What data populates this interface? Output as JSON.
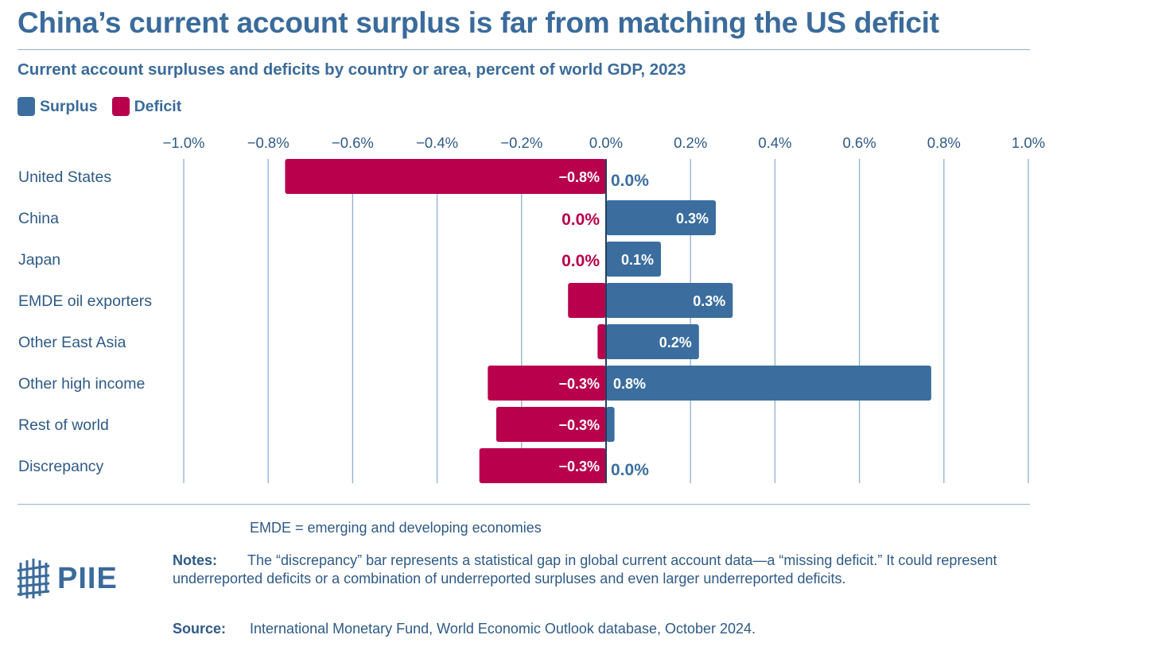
{
  "title": "China’s current account surplus is far from matching the US deficit",
  "subtitle": "Current account surpluses and deficits by country or area, percent of world GDP, 2023",
  "legend": {
    "surplus_label": "Surplus",
    "deficit_label": "Deficit"
  },
  "colors": {
    "surplus": "#3b6e9e",
    "deficit": "#b8004c",
    "grid": "#8fb0cf",
    "text": "#2e5a86"
  },
  "chart_data": {
    "type": "bar",
    "orientation": "horizontal",
    "categories": [
      "United States",
      "China",
      "Japan",
      "EMDE oil exporters",
      "Other East Asia",
      "Other high income",
      "Rest of world",
      "Discrepancy"
    ],
    "series": [
      {
        "name": "Surplus",
        "values": [
          0.0,
          0.26,
          0.13,
          0.3,
          0.22,
          0.77,
          0.02,
          0.0
        ]
      },
      {
        "name": "Deficit",
        "values": [
          -0.76,
          0.0,
          0.0,
          -0.09,
          -0.02,
          -0.28,
          -0.26,
          -0.3
        ]
      }
    ],
    "data_labels": {
      "surplus": [
        "0.0%",
        "0.3%",
        "0.1%",
        "0.3%",
        "0.2%",
        "0.8%",
        "",
        "0.0%"
      ],
      "deficit": [
        "−0.8%",
        "0.0%",
        "0.0%",
        "",
        "",
        "−0.3%",
        "−0.3%",
        "−0.3%"
      ]
    },
    "x_ticks": [
      "−1.0%",
      "−0.8%",
      "−0.6%",
      "−0.4%",
      "−0.2%",
      "0.0%",
      "0.2%",
      "0.4%",
      "0.6%",
      "0.8%",
      "1.0%"
    ],
    "xlim": [
      -1.0,
      1.0
    ],
    "grid": true,
    "legend_position": "top-left"
  },
  "footer": {
    "abbrev": "EMDE = emerging and developing economies",
    "notes_label": "Notes:",
    "notes_text": "The “discrepancy” bar represents a statistical gap in global current account data—a “missing deficit.” It could represent underreported deficits or a combination of underreported surpluses and even larger underreported deficits.",
    "source_label": "Source:",
    "source_text": "International Monetary Fund, World Economic Outlook database, October 2024.",
    "logo_text": "PIIE"
  }
}
